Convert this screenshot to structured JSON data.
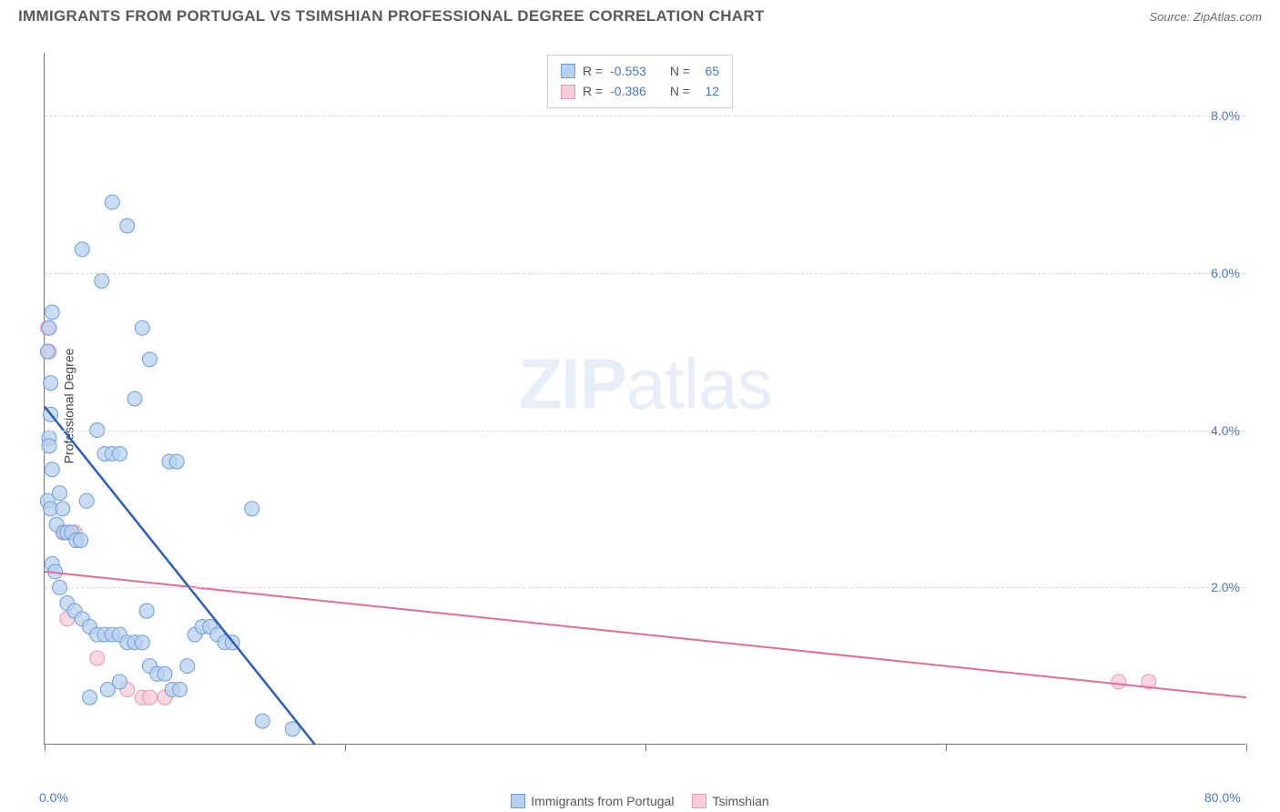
{
  "header": {
    "title": "IMMIGRANTS FROM PORTUGAL VS TSIMSHIAN PROFESSIONAL DEGREE CORRELATION CHART",
    "source_label": "Source: ZipAtlas.com"
  },
  "chart": {
    "type": "scatter",
    "watermark": "ZIPatlas",
    "ylabel": "Professional Degree",
    "background_color": "#ffffff",
    "grid_color": "#d9d9d9",
    "axis_color": "#777777",
    "tick_font_color": "#4a77c4",
    "tick_fontsize": 14,
    "label_fontsize": 14,
    "xlim": [
      0,
      80
    ],
    "ylim": [
      0,
      8.8
    ],
    "xticks": [
      {
        "pos": 0,
        "label": "0.0%"
      },
      {
        "pos": 20,
        "label": ""
      },
      {
        "pos": 40,
        "label": ""
      },
      {
        "pos": 60,
        "label": ""
      },
      {
        "pos": 80,
        "label": "80.0%"
      }
    ],
    "yticks": [
      {
        "pos": 2.0,
        "label": "2.0%"
      },
      {
        "pos": 4.0,
        "label": "4.0%"
      },
      {
        "pos": 6.0,
        "label": "6.0%"
      },
      {
        "pos": 8.0,
        "label": "8.0%"
      }
    ],
    "series": [
      {
        "name": "Immigrants from Portugal",
        "color_fill": "#b8d0ee",
        "color_stroke": "#6a9fdc",
        "marker_opacity": 0.75,
        "marker_r": 8,
        "line_color": "#2c5fb3",
        "line_width": 2.5,
        "trend": {
          "x1": 0,
          "y1": 4.3,
          "x2": 18,
          "y2": 0
        },
        "stats": {
          "R": "-0.553",
          "N": "65"
        },
        "points": [
          [
            0.3,
            5.3
          ],
          [
            0.2,
            5.0
          ],
          [
            0.3,
            3.9
          ],
          [
            0.3,
            3.8
          ],
          [
            0.4,
            4.6
          ],
          [
            0.2,
            3.1
          ],
          [
            0.5,
            3.5
          ],
          [
            0.4,
            3.0
          ],
          [
            1.0,
            3.2
          ],
          [
            1.2,
            3.0
          ],
          [
            0.8,
            2.8
          ],
          [
            1.3,
            2.7
          ],
          [
            1.5,
            2.7
          ],
          [
            1.8,
            2.7
          ],
          [
            2.1,
            2.6
          ],
          [
            2.4,
            2.6
          ],
          [
            2.8,
            3.1
          ],
          [
            3.5,
            4.0
          ],
          [
            4.0,
            3.7
          ],
          [
            4.5,
            3.7
          ],
          [
            5.0,
            3.7
          ],
          [
            6.0,
            4.4
          ],
          [
            7.0,
            4.9
          ],
          [
            5.5,
            6.6
          ],
          [
            4.5,
            6.9
          ],
          [
            3.8,
            5.9
          ],
          [
            2.5,
            6.3
          ],
          [
            0.5,
            5.5
          ],
          [
            6.5,
            5.3
          ],
          [
            0.4,
            4.2
          ],
          [
            0.5,
            2.3
          ],
          [
            0.7,
            2.2
          ],
          [
            1.0,
            2.0
          ],
          [
            1.5,
            1.8
          ],
          [
            2.0,
            1.7
          ],
          [
            2.5,
            1.6
          ],
          [
            3.0,
            1.5
          ],
          [
            3.5,
            1.4
          ],
          [
            4.0,
            1.4
          ],
          [
            4.5,
            1.4
          ],
          [
            5.0,
            1.4
          ],
          [
            5.5,
            1.3
          ],
          [
            6.0,
            1.3
          ],
          [
            6.5,
            1.3
          ],
          [
            7.0,
            1.0
          ],
          [
            7.5,
            0.9
          ],
          [
            8.0,
            0.9
          ],
          [
            8.5,
            0.7
          ],
          [
            9.0,
            0.7
          ],
          [
            9.5,
            1.0
          ],
          [
            10.0,
            1.4
          ],
          [
            10.5,
            1.5
          ],
          [
            11.0,
            1.5
          ],
          [
            11.5,
            1.4
          ],
          [
            12.0,
            1.3
          ],
          [
            12.5,
            1.3
          ],
          [
            13.8,
            3.0
          ],
          [
            14.5,
            0.3
          ],
          [
            8.3,
            3.6
          ],
          [
            8.8,
            3.6
          ],
          [
            6.8,
            1.7
          ],
          [
            4.2,
            0.7
          ],
          [
            5.0,
            0.8
          ],
          [
            3.0,
            0.6
          ],
          [
            16.5,
            0.2
          ]
        ]
      },
      {
        "name": "Tsimshian",
        "color_fill": "#f7cdd8",
        "color_stroke": "#e995b0",
        "marker_opacity": 0.8,
        "marker_r": 8,
        "line_color": "#e96a91",
        "line_width": 2,
        "trend": {
          "x1": 0,
          "y1": 2.2,
          "x2": 80,
          "y2": 0.6
        },
        "stats": {
          "R": "-0.386",
          "N": "12"
        },
        "points": [
          [
            0.2,
            5.3
          ],
          [
            0.3,
            5.0
          ],
          [
            1.2,
            2.7
          ],
          [
            2.0,
            2.7
          ],
          [
            1.5,
            1.6
          ],
          [
            3.5,
            1.1
          ],
          [
            5.5,
            0.7
          ],
          [
            6.5,
            0.6
          ],
          [
            7.0,
            0.6
          ],
          [
            8.0,
            0.6
          ],
          [
            71.5,
            0.8
          ],
          [
            73.5,
            0.8
          ]
        ]
      }
    ],
    "bottom_legend": [
      {
        "label": "Immigrants from Portugal",
        "fill": "#b8d0ee",
        "stroke": "#6a9fdc"
      },
      {
        "label": "Tsimshian",
        "fill": "#f7cdd8",
        "stroke": "#e995b0"
      }
    ],
    "stats_box": {
      "rows": [
        {
          "fill": "#b8d0ee",
          "stroke": "#6a9fdc",
          "R_label": "R =",
          "R": "-0.553",
          "N_label": "N =",
          "N": "65"
        },
        {
          "fill": "#f7cdd8",
          "stroke": "#e995b0",
          "R_label": "R =",
          "R": "-0.386",
          "N_label": "N =",
          "N": "12"
        }
      ]
    }
  }
}
